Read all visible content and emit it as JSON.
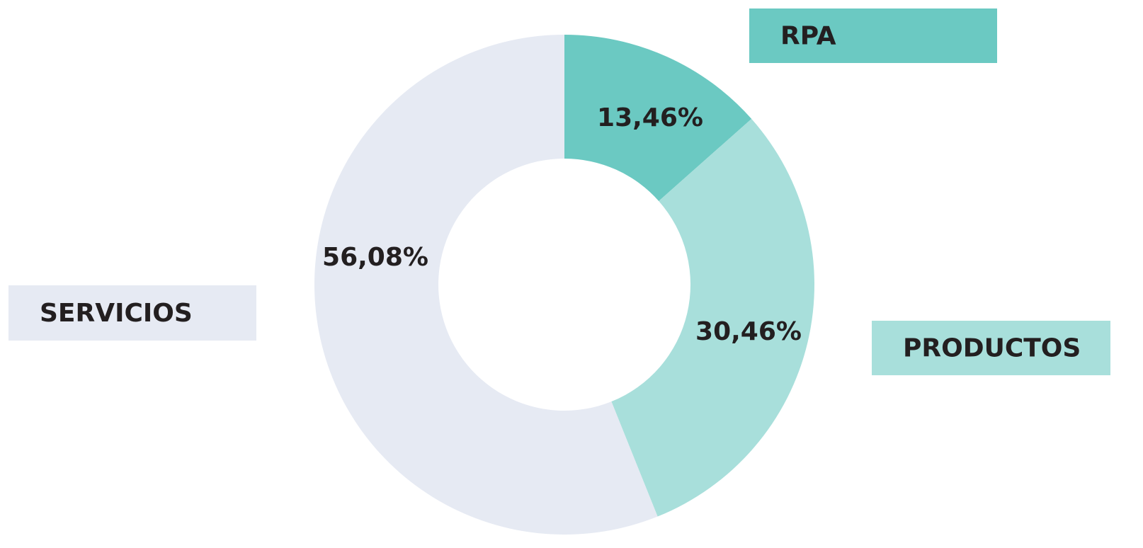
{
  "chart_data": {
    "type": "donut",
    "categories": [
      "RPA",
      "PRODUCTOS",
      "SERVICIOS"
    ],
    "values": [
      13.46,
      30.46,
      56.08
    ],
    "value_labels": [
      "13,46%",
      "30,46%",
      "56,08%"
    ],
    "colors": [
      "#6bc9c2",
      "#a8dfdb",
      "#e6eaf3"
    ]
  }
}
